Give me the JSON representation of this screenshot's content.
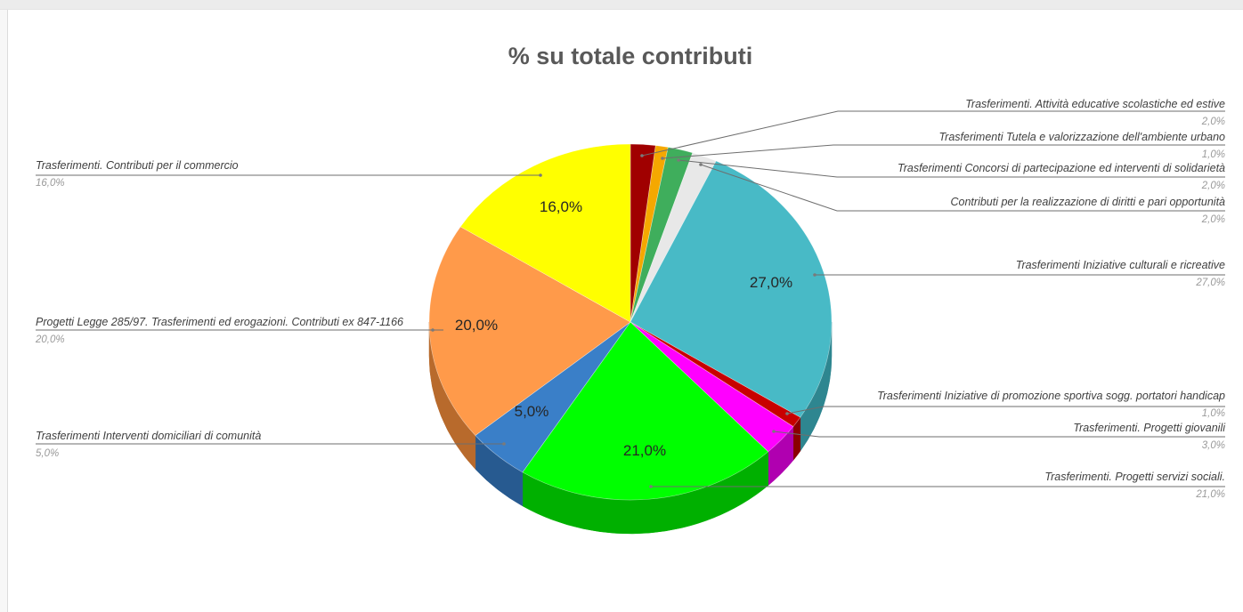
{
  "chart_data": {
    "type": "pie",
    "title": "% su totale contributi",
    "style": "3d",
    "legend": "none",
    "slices": [
      {
        "label": "Trasferimenti. Attività educative scolastiche ed estive",
        "value": 2.0,
        "pct_text": "2,0%",
        "data_label": "",
        "color": "#a00000",
        "side_color": "#6b0000"
      },
      {
        "label": "Trasferimenti Tutela e valorizzazione dell'ambiente urbano",
        "value": 1.0,
        "pct_text": "1,0%",
        "data_label": "",
        "color": "#f5a800",
        "side_color": "#b57c00"
      },
      {
        "label": "Trasferimenti Concorsi di partecipazione ed interventi di solidarietà",
        "value": 2.0,
        "pct_text": "2,0%",
        "data_label": "",
        "color": "#3fae5c",
        "side_color": "#2a7a40"
      },
      {
        "label": "Contributi per la realizzazione di diritti e pari opportunità",
        "value": 2.0,
        "pct_text": "2,0%",
        "data_label": "",
        "color": "#e8e8e8",
        "side_color": "#b0b0b0"
      },
      {
        "label": "Trasferimenti Iniziative culturali e ricreative",
        "value": 27.0,
        "pct_text": "27,0%",
        "data_label": "27,0%",
        "color": "#48bac6",
        "side_color": "#2e8690"
      },
      {
        "label": "Trasferimenti Iniziative di promozione sportiva sogg. portatori handicap",
        "value": 1.0,
        "pct_text": "1,0%",
        "data_label": "",
        "color": "#c80000",
        "side_color": "#8a0000"
      },
      {
        "label": "Trasferimenti. Progetti giovanili",
        "value": 3.0,
        "pct_text": "3,0%",
        "data_label": "",
        "color": "#ff00ff",
        "side_color": "#b000b0"
      },
      {
        "label": "Trasferimenti. Progetti servizi sociali.",
        "value": 21.0,
        "pct_text": "21,0%",
        "data_label": "21,0%",
        "color": "#00ff00",
        "side_color": "#00b000"
      },
      {
        "label": "Trasferimenti Interventi domiciliari di comunità",
        "value": 5.0,
        "pct_text": "5,0%",
        "data_label": "5,0%",
        "color": "#3a7fc8",
        "side_color": "#275a90"
      },
      {
        "label": "Progetti Legge 285/97. Trasferimenti ed erogazioni. Contributi ex 847-1166",
        "value": 20.0,
        "pct_text": "20,0%",
        "data_label": "20,0%",
        "color": "#ff9a4a",
        "side_color": "#b86a2c"
      },
      {
        "label": "Trasferimenti. Contributi per il commercio",
        "value": 16.0,
        "pct_text": "16,0%",
        "data_label": "16,0%",
        "color": "#ffff00",
        "side_color": "#b8b800"
      }
    ]
  }
}
